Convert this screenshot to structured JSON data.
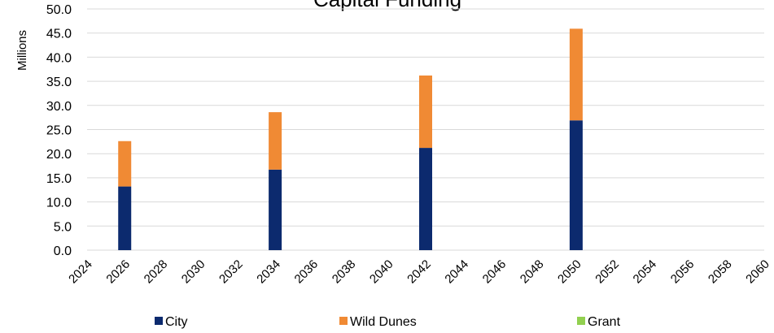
{
  "chart_data": {
    "type": "bar",
    "stacked": true,
    "title": "Capital Funding",
    "ylabel": "Millions",
    "xlabel": "",
    "ylim": [
      0,
      50
    ],
    "ytick_step": 5,
    "ytick_labels": [
      "0.0",
      "5.0",
      "10.0",
      "15.0",
      "20.0",
      "25.0",
      "30.0",
      "35.0",
      "40.0",
      "45.0",
      "50.0"
    ],
    "x_ticks": [
      "2024",
      "2026",
      "2028",
      "2030",
      "2032",
      "2034",
      "2036",
      "2038",
      "2040",
      "2042",
      "2044",
      "2046",
      "2048",
      "2050",
      "2052",
      "2054",
      "2056",
      "2058",
      "2060"
    ],
    "xlim": [
      2024,
      2060
    ],
    "grid": true,
    "legend_position": "bottom",
    "x": [
      2026,
      2034,
      2042,
      2050
    ],
    "series": [
      {
        "name": "City",
        "color": "#0c2a6e",
        "values": [
          13.2,
          16.7,
          21.2,
          26.9
        ]
      },
      {
        "name": "Wild Dunes",
        "color": "#f08a34",
        "values": [
          9.4,
          11.9,
          15.0,
          19.0
        ]
      },
      {
        "name": "Grant",
        "color": "#92d050",
        "values": [
          0,
          0,
          0,
          0
        ]
      }
    ]
  }
}
